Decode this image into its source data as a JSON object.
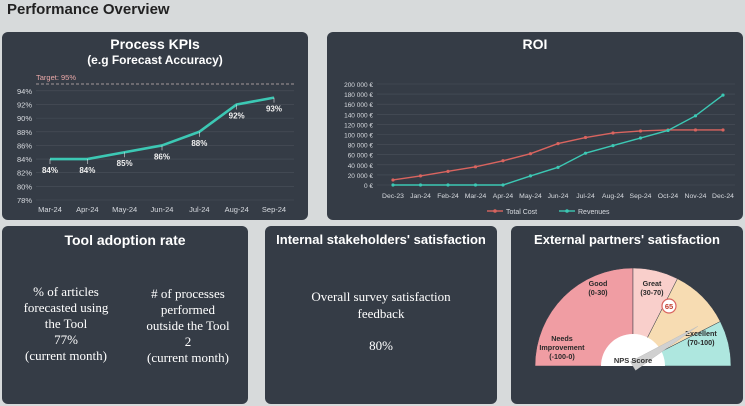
{
  "page_title": "Performance Overview",
  "kpi": {
    "title": "Process KPIs",
    "subtitle": "(e.g Forecast Accuracy)",
    "target_label": "Target: 95%",
    "chart_data": {
      "type": "line",
      "categories": [
        "Mar-24",
        "Apr-24",
        "May-24",
        "Jun-24",
        "Jul-24",
        "Aug-24",
        "Sep-24"
      ],
      "values": [
        84,
        84,
        85,
        86,
        88,
        92,
        93
      ],
      "data_labels": [
        "84%",
        "84%",
        "85%",
        "86%",
        "88%",
        "92%",
        "93%"
      ],
      "y_ticks": [
        "78%",
        "80%",
        "82%",
        "84%",
        "86%",
        "88%",
        "90%",
        "92%",
        "94%"
      ],
      "ylim": [
        78,
        95
      ],
      "target": 95,
      "line_color": "#3cc8b4"
    }
  },
  "roi": {
    "title": "ROI",
    "chart_data": {
      "type": "line",
      "categories": [
        "Dec-23",
        "Jan-24",
        "Feb-24",
        "Mar-24",
        "Apr-24",
        "May-24",
        "Jun-24",
        "Jul-24",
        "Aug-24",
        "Sep-24",
        "Oct-24",
        "Nov-24",
        "Dec-24"
      ],
      "y_ticks": [
        "0 €",
        "20 000 €",
        "40 000 €",
        "60 000 €",
        "80 000 €",
        "100 000 €",
        "120 000 €",
        "140 000 €",
        "160 000 €",
        "180 000 €",
        "200 000 €"
      ],
      "ylim": [
        0,
        200000
      ],
      "series": [
        {
          "name": "Total Cost",
          "color": "#d9645f",
          "values": [
            10000,
            18000,
            27000,
            36000,
            48000,
            62000,
            82000,
            94000,
            103000,
            107000,
            109000,
            109000,
            109000
          ]
        },
        {
          "name": "Revenues",
          "color": "#3cc8b4",
          "values": [
            0,
            0,
            0,
            0,
            0,
            18000,
            35000,
            63000,
            78000,
            93000,
            108000,
            137000,
            178000
          ]
        }
      ],
      "legend": "bottom"
    }
  },
  "tool_adoption": {
    "title": "Tool adoption rate",
    "col1": [
      "% of articles",
      "forecasted using",
      "the Tool",
      "77%",
      "(current month)"
    ],
    "col2": [
      "# of processes",
      "performed",
      "outside the Tool",
      "2",
      "(current month)"
    ]
  },
  "internal": {
    "title": "Internal stakeholders' satisfaction",
    "line1": "Overall survey satisfaction",
    "line2": "feedback",
    "value": "80%"
  },
  "external": {
    "title": "External partners' satisfaction",
    "gauge_label": "NPS Score",
    "score": "65",
    "score_value": 65,
    "segments": [
      {
        "name": "Needs",
        "name2": "Improvement",
        "range": "(-100-0)",
        "color": "#f09da3",
        "from": -100,
        "to": 0
      },
      {
        "name": "Good",
        "name2": "",
        "range": "(0-30)",
        "color": "#f9cfcb",
        "from": 0,
        "to": 30
      },
      {
        "name": "Great",
        "name2": "",
        "range": "(30-70)",
        "color": "#f7dcb2",
        "from": 30,
        "to": 70
      },
      {
        "name": "Excellent",
        "name2": "",
        "range": "(70-100)",
        "color": "#aee7df",
        "from": 70,
        "to": 100
      }
    ]
  }
}
